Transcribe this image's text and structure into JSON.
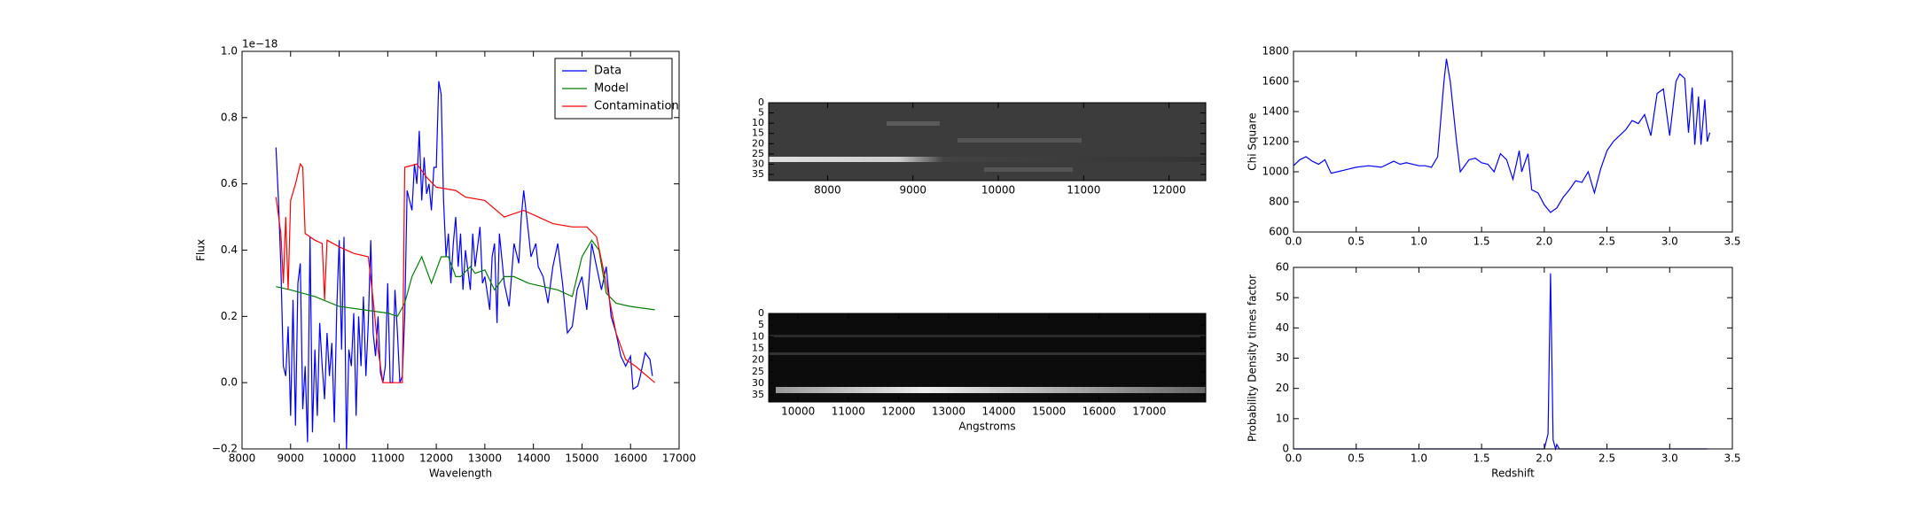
{
  "chart_data": [
    {
      "type": "line",
      "xlabel": "Wavelength",
      "ylabel": "Flux",
      "offset_text": "1e−18",
      "legend": "upper right",
      "xlim": [
        8000,
        17000
      ],
      "xticks": [
        8000,
        9000,
        10000,
        11000,
        12000,
        13000,
        14000,
        15000,
        16000,
        17000
      ],
      "ylim": [
        -0.2,
        1.0
      ],
      "yticks": [
        {
          "value": -0.2,
          "label": "−0.2"
        },
        {
          "value": 0,
          "label": "0.0"
        },
        0.2,
        0.4,
        0.6,
        0.8,
        {
          "value": 1,
          "label": "1.0"
        }
      ],
      "series": [
        {
          "name": "Data",
          "color": "#0000ff",
          "x": [
            8700,
            8750,
            8800,
            8850,
            8900,
            8950,
            9000,
            9050,
            9100,
            9150,
            9200,
            9250,
            9300,
            9350,
            9400,
            9450,
            9500,
            9550,
            9600,
            9650,
            9700,
            9750,
            9800,
            9850,
            9900,
            9950,
            10000,
            10050,
            10100,
            10150,
            10200,
            10250,
            10300,
            10350,
            10400,
            10450,
            10500,
            10550,
            10600,
            10650,
            10700,
            10750,
            10800,
            10850,
            10900,
            10950,
            11000,
            11050,
            11100,
            11150,
            11200,
            11250,
            11300,
            11350,
            11400,
            11500,
            11550,
            11600,
            11650,
            11700,
            11750,
            11800,
            11850,
            11900,
            11950,
            12000,
            12050,
            12100,
            12150,
            12200,
            12250,
            12300,
            12350,
            12400,
            12450,
            12500,
            12550,
            12600,
            12700,
            12750,
            12800,
            12900,
            12950,
            13000,
            13100,
            13150,
            13200,
            13250,
            13300,
            13400,
            13500,
            13600,
            13700,
            13750,
            13800,
            13900,
            13950,
            14050,
            14100,
            14200,
            14300,
            14400,
            14500,
            14600,
            14700,
            14800,
            14900,
            15000,
            15100,
            15200,
            15300,
            15400,
            15500,
            15600,
            15700,
            15800,
            15900,
            16000,
            16050,
            16150,
            16200,
            16300,
            16400,
            16450
          ],
          "values": [
            0.71,
            0.55,
            0.35,
            0.05,
            0.02,
            0.17,
            -0.1,
            0.25,
            -0.13,
            0.3,
            0.36,
            -0.08,
            0.05,
            -0.18,
            0.44,
            -0.15,
            0.1,
            -0.1,
            0.18,
            0.05,
            -0.05,
            0.15,
            0.02,
            0.12,
            -0.12,
            0.22,
            0.43,
            0.1,
            0.44,
            -0.2,
            0.1,
            0.05,
            0.21,
            -0.1,
            0.2,
            0.05,
            0.26,
            0.02,
            0.18,
            0.43,
            0.15,
            0.08,
            0.2,
            0.03,
            0.0,
            0.05,
            0.3,
            0.0,
            0.0,
            0.28,
            0.15,
            0.0,
            0.02,
            0.2,
            0.58,
            0.52,
            0.66,
            0.6,
            0.76,
            0.55,
            0.68,
            0.57,
            0.6,
            0.52,
            0.65,
            0.65,
            0.91,
            0.87,
            0.55,
            0.38,
            0.45,
            0.3,
            0.42,
            0.5,
            0.35,
            0.45,
            0.28,
            0.4,
            0.28,
            0.45,
            0.35,
            0.47,
            0.3,
            0.32,
            0.22,
            0.38,
            0.42,
            0.18,
            0.45,
            0.3,
            0.23,
            0.42,
            0.36,
            0.5,
            0.58,
            0.45,
            0.38,
            0.42,
            0.35,
            0.32,
            0.24,
            0.35,
            0.42,
            0.3,
            0.15,
            0.17,
            0.28,
            0.32,
            0.22,
            0.42,
            0.35,
            0.28,
            0.35,
            0.2,
            0.15,
            0.08,
            0.05,
            0.08,
            -0.02,
            -0.01,
            0.02,
            0.09,
            0.07,
            0.02
          ]
        },
        {
          "name": "Model",
          "color": "#008000",
          "x": [
            8700,
            9000,
            9500,
            10000,
            10500,
            11000,
            11200,
            11350,
            11500,
            11700,
            11900,
            12100,
            12250,
            12400,
            12500,
            12700,
            12800,
            13000,
            13200,
            13400,
            13600,
            13900,
            14200,
            14500,
            14800,
            15000,
            15200,
            15350,
            15500,
            15700,
            16000,
            16500
          ],
          "values": [
            0.29,
            0.28,
            0.26,
            0.23,
            0.22,
            0.21,
            0.2,
            0.24,
            0.32,
            0.38,
            0.3,
            0.38,
            0.38,
            0.32,
            0.32,
            0.35,
            0.33,
            0.34,
            0.28,
            0.32,
            0.32,
            0.3,
            0.29,
            0.28,
            0.26,
            0.38,
            0.43,
            0.4,
            0.27,
            0.24,
            0.23,
            0.22
          ]
        },
        {
          "name": "Contamination",
          "color": "#ff0000",
          "x": [
            8700,
            8800,
            8850,
            8900,
            8950,
            9000,
            9100,
            9200,
            9250,
            9300,
            9500,
            9650,
            9700,
            9750,
            10000,
            10300,
            10600,
            10700,
            10800,
            10900,
            11300,
            11350,
            11600,
            11800,
            12000,
            12400,
            12600,
            13000,
            13400,
            13800,
            14100,
            14400,
            14800,
            15100,
            15300,
            15500,
            15700,
            15900,
            16100,
            16500
          ],
          "values": [
            0.56,
            0.45,
            0.3,
            0.5,
            0.28,
            0.55,
            0.6,
            0.66,
            0.65,
            0.45,
            0.43,
            0.42,
            0.25,
            0.43,
            0.41,
            0.39,
            0.38,
            0.25,
            0.1,
            0.0,
            0.0,
            0.65,
            0.66,
            0.62,
            0.59,
            0.58,
            0.56,
            0.55,
            0.5,
            0.52,
            0.5,
            0.48,
            0.47,
            0.47,
            0.44,
            0.3,
            0.15,
            0.07,
            0.05,
            0.0
          ]
        }
      ]
    },
    {
      "type": "image",
      "xlim": [
        7310,
        12430
      ],
      "xticks": [
        8000,
        9000,
        10000,
        11000,
        12000
      ],
      "ylim": [
        38,
        0
      ],
      "yticks": [
        0,
        5,
        10,
        15,
        20,
        25,
        30,
        35
      ]
    },
    {
      "type": "image",
      "xlabel": "Angstroms",
      "xlim": [
        9413,
        18125
      ],
      "xticks": [
        10000,
        11000,
        12000,
        13000,
        14000,
        15000,
        16000,
        17000
      ],
      "ylim": [
        38,
        0
      ],
      "yticks": [
        0,
        5,
        10,
        15,
        20,
        25,
        30,
        35
      ]
    },
    {
      "type": "line",
      "ylabel": "Chi Square",
      "xlim": [
        0,
        3.5
      ],
      "xticks": [
        {
          "value": 0,
          "label": "0.0"
        },
        0.5,
        {
          "value": 1,
          "label": "1.0"
        },
        1.5,
        {
          "value": 2,
          "label": "2.0"
        },
        2.5,
        {
          "value": 3,
          "label": "3.0"
        },
        3.5
      ],
      "ylim": [
        600,
        1800
      ],
      "yticks": [
        600,
        800,
        1000,
        1200,
        1400,
        1600,
        1800
      ],
      "series": [
        {
          "color": "#0000ff",
          "x": [
            0,
            0.05,
            0.1,
            0.15,
            0.2,
            0.25,
            0.3,
            0.35,
            0.4,
            0.5,
            0.6,
            0.7,
            0.8,
            0.85,
            0.9,
            1.0,
            1.05,
            1.1,
            1.15,
            1.2,
            1.22,
            1.25,
            1.3,
            1.33,
            1.4,
            1.45,
            1.5,
            1.55,
            1.6,
            1.65,
            1.7,
            1.75,
            1.8,
            1.82,
            1.87,
            1.9,
            1.95,
            2.0,
            2.05,
            2.1,
            2.15,
            2.2,
            2.25,
            2.3,
            2.35,
            2.4,
            2.45,
            2.5,
            2.55,
            2.6,
            2.65,
            2.7,
            2.75,
            2.8,
            2.85,
            2.9,
            2.95,
            3.0,
            3.05,
            3.08,
            3.12,
            3.15,
            3.18,
            3.2,
            3.23,
            3.25,
            3.28,
            3.3,
            3.32
          ],
          "values": [
            1040,
            1080,
            1100,
            1070,
            1050,
            1080,
            990,
            1000,
            1010,
            1030,
            1040,
            1030,
            1070,
            1050,
            1060,
            1040,
            1040,
            1030,
            1100,
            1600,
            1750,
            1600,
            1200,
            1000,
            1080,
            1090,
            1060,
            1050,
            1000,
            1120,
            1080,
            950,
            1140,
            1000,
            1120,
            880,
            860,
            780,
            730,
            760,
            830,
            880,
            940,
            930,
            1000,
            860,
            1020,
            1140,
            1200,
            1240,
            1280,
            1340,
            1320,
            1380,
            1240,
            1520,
            1550,
            1240,
            1600,
            1650,
            1620,
            1260,
            1560,
            1180,
            1500,
            1180,
            1480,
            1200,
            1260
          ]
        }
      ]
    },
    {
      "type": "line",
      "xlabel": "Redshift",
      "ylabel": "Probability Density times factor",
      "xlim": [
        0,
        3.5
      ],
      "xticks": [
        {
          "value": 0,
          "label": "0.0"
        },
        0.5,
        {
          "value": 1,
          "label": "1.0"
        },
        1.5,
        {
          "value": 2,
          "label": "2.0"
        },
        2.5,
        {
          "value": 3,
          "label": "3.0"
        },
        3.5
      ],
      "ylim": [
        0,
        60
      ],
      "yticks": [
        0,
        10,
        20,
        30,
        40,
        50,
        60
      ],
      "series": [
        {
          "color": "#0000ff",
          "x": [
            0,
            1.9,
            2.0,
            2.03,
            2.05,
            2.07,
            2.09,
            2.1,
            2.12,
            3.3
          ],
          "values": [
            0,
            0,
            0,
            5,
            58,
            3,
            0,
            1.5,
            0,
            0
          ]
        }
      ]
    }
  ]
}
